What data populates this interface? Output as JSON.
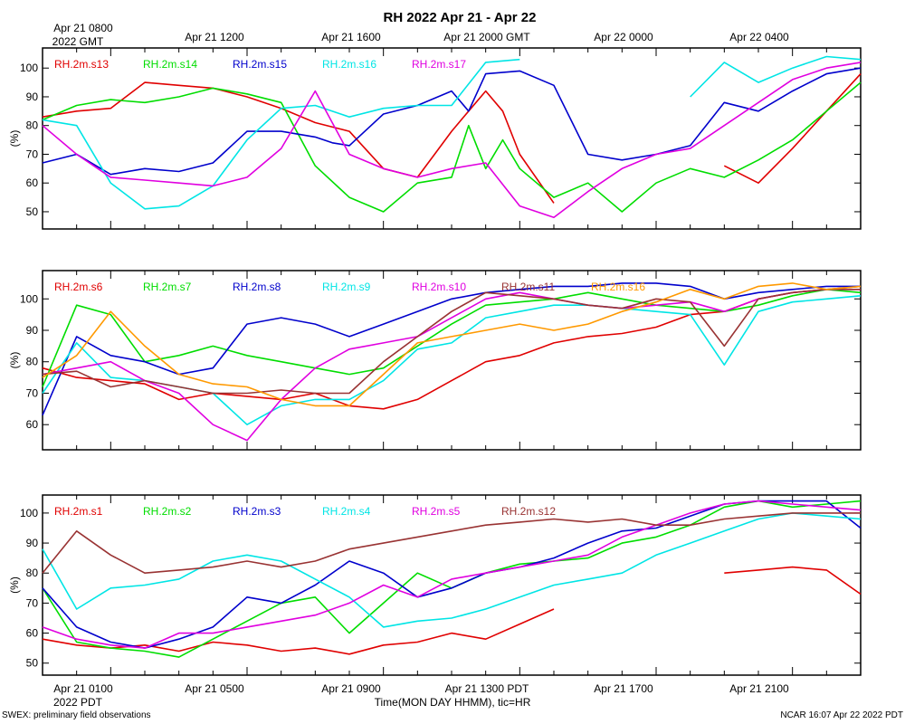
{
  "title": "RH 2022 Apr 21 - Apr 22",
  "top_axis": {
    "labels": [
      "Apr 21 0800",
      "Apr 21 1200",
      "Apr 21 1600",
      "Apr 21 2000 GMT",
      "Apr 22 0000",
      "Apr 22 0400"
    ],
    "year_label": "2022 GMT"
  },
  "bottom_axis": {
    "labels": [
      "Apr 21 0100",
      "Apr 21 0500",
      "Apr 21 0900",
      "Apr 21 1300 PDT",
      "Apr 21 1700",
      "Apr 21 2100"
    ],
    "year_label": "2022 PDT",
    "xlabel": "Time(MON DAY HHMM), tic=HR"
  },
  "footer": {
    "left": "SWEX: preliminary field observations",
    "right": "NCAR 16:07 Apr 22 2022 PDT"
  },
  "colors": {
    "red": "#e00000",
    "green": "#00dd00",
    "blue": "#0000cc",
    "cyan": "#00e5e5",
    "magenta": "#e000e0",
    "brown": "#993333",
    "orange": "#ff9900"
  },
  "chart_data": [
    {
      "type": "line",
      "ylabel": "(%)",
      "ylim": [
        44,
        107
      ],
      "xlim": [
        0,
        24
      ],
      "yticks": [
        50,
        60,
        70,
        80,
        90,
        100
      ],
      "series": [
        {
          "name": "RH.2m.s13",
          "color": "red",
          "x": [
            0,
            1,
            2,
            3,
            4,
            5,
            6,
            7,
            8,
            9,
            10,
            11,
            11.5,
            12,
            12.5,
            13,
            13.5,
            14,
            15,
            16,
            17,
            18,
            18.5,
            19,
            20,
            21,
            22,
            23,
            24
          ],
          "y": [
            83,
            85,
            86,
            95,
            94,
            93,
            90,
            86,
            81,
            78,
            65,
            62,
            70,
            78,
            85,
            92,
            85,
            70,
            53,
            null,
            null,
            null,
            null,
            null,
            66,
            60,
            72,
            85,
            98
          ]
        },
        {
          "name": "RH.2m.s14",
          "color": "green",
          "x": [
            0,
            1,
            2,
            3,
            4,
            5,
            6,
            7,
            8,
            9,
            10,
            11,
            12,
            12.5,
            13,
            13.5,
            14,
            15,
            16,
            17,
            18,
            19,
            20,
            21,
            22,
            23,
            24
          ],
          "y": [
            82,
            87,
            89,
            88,
            90,
            93,
            91,
            88,
            66,
            55,
            50,
            60,
            62,
            80,
            65,
            75,
            65,
            55,
            60,
            50,
            60,
            65,
            62,
            68,
            75,
            85,
            95
          ]
        },
        {
          "name": "RH.2m.s15",
          "color": "blue",
          "x": [
            0,
            1,
            2,
            3,
            4,
            5,
            6,
            7,
            8,
            8.5,
            9,
            10,
            11,
            12,
            12.5,
            13,
            14,
            15,
            16,
            17,
            18,
            19,
            20,
            21,
            22,
            23,
            24
          ],
          "y": [
            67,
            70,
            63,
            65,
            64,
            67,
            78,
            78,
            76,
            74,
            73,
            84,
            87,
            92,
            85,
            98,
            99,
            94,
            70,
            68,
            70,
            73,
            88,
            85,
            92,
            98,
            100
          ]
        },
        {
          "name": "RH.2m.s16",
          "color": "cyan",
          "x": [
            0,
            1,
            2,
            3,
            4,
            5,
            6,
            7,
            8,
            9,
            10,
            11,
            12,
            13,
            14,
            15,
            16,
            17,
            18,
            19,
            20,
            21,
            22,
            23,
            24
          ],
          "y": [
            82,
            80,
            60,
            51,
            52,
            59,
            75,
            86,
            87,
            83,
            86,
            87,
            87,
            102,
            103,
            null,
            null,
            null,
            null,
            90,
            102,
            95,
            100,
            104,
            103
          ]
        },
        {
          "name": "RH.2m.s17",
          "color": "magenta",
          "x": [
            0,
            1,
            2,
            3,
            4,
            5,
            6,
            7,
            8,
            9,
            10,
            11,
            12,
            13,
            14,
            15,
            16,
            17,
            18,
            19,
            20,
            21,
            22,
            23,
            24
          ],
          "y": [
            80,
            70,
            62,
            61,
            60,
            59,
            62,
            72,
            92,
            70,
            65,
            62,
            65,
            67,
            52,
            48,
            57,
            65,
            70,
            72,
            80,
            88,
            96,
            100,
            102
          ]
        }
      ]
    },
    {
      "type": "line",
      "ylabel": "(%)",
      "ylim": [
        52,
        109
      ],
      "xlim": [
        0,
        24
      ],
      "yticks": [
        60,
        70,
        80,
        90,
        100
      ],
      "series": [
        {
          "name": "RH.2m.s6",
          "color": "red",
          "x": [
            0,
            1,
            2,
            3,
            4,
            5,
            6,
            7,
            8,
            9,
            10,
            11,
            12,
            13,
            14,
            15,
            16,
            17,
            18,
            19,
            20,
            21,
            22,
            23,
            24
          ],
          "y": [
            78,
            75,
            74,
            73,
            68,
            70,
            69,
            68,
            70,
            66,
            65,
            68,
            74,
            80,
            82,
            86,
            88,
            89,
            91,
            95,
            96,
            100,
            102,
            103,
            104
          ]
        },
        {
          "name": "RH.2m.s7",
          "color": "green",
          "x": [
            0,
            1,
            2,
            3,
            4,
            5,
            6,
            7,
            8,
            9,
            10,
            11,
            12,
            13,
            14,
            15,
            16,
            17,
            18,
            19,
            20,
            21,
            22,
            23,
            24
          ],
          "y": [
            72,
            98,
            95,
            80,
            82,
            85,
            82,
            80,
            78,
            76,
            78,
            85,
            92,
            98,
            99,
            100,
            102,
            100,
            98,
            97,
            96,
            98,
            101,
            103,
            102
          ]
        },
        {
          "name": "RH.2m.s8",
          "color": "blue",
          "x": [
            0,
            1,
            2,
            3,
            4,
            5,
            6,
            7,
            8,
            9,
            10,
            11,
            12,
            13,
            14,
            15,
            16,
            17,
            18,
            19,
            20,
            21,
            22,
            23,
            24
          ],
          "y": [
            63,
            88,
            82,
            80,
            76,
            78,
            92,
            94,
            92,
            88,
            92,
            96,
            100,
            102,
            103,
            104,
            104,
            105,
            105,
            104,
            100,
            102,
            103,
            104,
            104
          ]
        },
        {
          "name": "RH.2m.s9",
          "color": "cyan",
          "x": [
            0,
            1,
            2,
            3,
            4,
            5,
            6,
            7,
            8,
            9,
            10,
            11,
            12,
            13,
            14,
            15,
            16,
            17,
            18,
            19,
            20,
            21,
            22,
            23,
            24
          ],
          "y": [
            70,
            86,
            75,
            74,
            72,
            70,
            60,
            66,
            68,
            68,
            74,
            84,
            86,
            94,
            96,
            98,
            98,
            97,
            96,
            95,
            79,
            96,
            99,
            100,
            101
          ]
        },
        {
          "name": "RH.2m.s10",
          "color": "magenta",
          "x": [
            0,
            1,
            2,
            3,
            4,
            5,
            6,
            7,
            8,
            9,
            10,
            11,
            12,
            13,
            14,
            15,
            16,
            17,
            18,
            19,
            20,
            21,
            22,
            23,
            24
          ],
          "y": [
            76,
            78,
            80,
            74,
            70,
            60,
            55,
            68,
            78,
            84,
            86,
            88,
            94,
            100,
            102,
            100,
            98,
            97,
            98,
            99,
            96,
            100,
            102,
            103,
            103
          ]
        },
        {
          "name": "RH.2m.s11",
          "color": "brown",
          "x": [
            0,
            1,
            2,
            3,
            4,
            5,
            6,
            7,
            8,
            9,
            10,
            11,
            12,
            13,
            14,
            15,
            16,
            17,
            18,
            19,
            20,
            21,
            22,
            23,
            24
          ],
          "y": [
            76,
            77,
            72,
            74,
            72,
            70,
            70,
            71,
            70,
            70,
            80,
            88,
            96,
            102,
            101,
            100,
            98,
            97,
            100,
            99,
            85,
            100,
            102,
            103,
            103
          ]
        },
        {
          "name": "RH.2m.s16",
          "color": "orange",
          "x": [
            0,
            1,
            2,
            3,
            4,
            5,
            6,
            7,
            8,
            9,
            10,
            11,
            12,
            13,
            14,
            15,
            16,
            17,
            18,
            19,
            20,
            21,
            22,
            23,
            24
          ],
          "y": [
            75,
            82,
            96,
            85,
            76,
            73,
            72,
            68,
            66,
            66,
            76,
            86,
            88,
            90,
            92,
            90,
            92,
            96,
            99,
            103,
            100,
            104,
            105,
            103,
            104
          ]
        }
      ]
    },
    {
      "type": "line",
      "ylabel": "(%)",
      "ylim": [
        46,
        106
      ],
      "xlim": [
        0,
        24
      ],
      "yticks": [
        50,
        60,
        70,
        80,
        90,
        100
      ],
      "series": [
        {
          "name": "RH.2m.s1",
          "color": "red",
          "x": [
            0,
            1,
            2,
            3,
            4,
            5,
            6,
            7,
            8,
            9,
            10,
            11,
            12,
            13,
            14,
            15,
            16,
            17,
            18,
            19,
            20,
            21,
            22,
            23,
            24
          ],
          "y": [
            58,
            56,
            55,
            56,
            54,
            57,
            56,
            54,
            55,
            53,
            56,
            57,
            60,
            58,
            63,
            68,
            null,
            null,
            null,
            null,
            80,
            81,
            82,
            81,
            73
          ]
        },
        {
          "name": "RH.2m.s2",
          "color": "green",
          "x": [
            0,
            1,
            2,
            3,
            4,
            5,
            6,
            7,
            8,
            9,
            10,
            11,
            12,
            13,
            14,
            15,
            16,
            17,
            18,
            19,
            20,
            21,
            22,
            23,
            24
          ],
          "y": [
            75,
            57,
            55,
            54,
            52,
            58,
            64,
            70,
            72,
            60,
            70,
            80,
            75,
            80,
            83,
            84,
            85,
            90,
            92,
            96,
            102,
            104,
            102,
            103,
            104
          ]
        },
        {
          "name": "RH.2m.s3",
          "color": "blue",
          "x": [
            0,
            1,
            2,
            3,
            4,
            5,
            6,
            7,
            8,
            9,
            10,
            11,
            12,
            13,
            14,
            15,
            16,
            17,
            18,
            19,
            20,
            21,
            22,
            23,
            24
          ],
          "y": [
            75,
            62,
            57,
            55,
            58,
            62,
            72,
            70,
            76,
            84,
            80,
            72,
            75,
            80,
            82,
            85,
            90,
            94,
            95,
            99,
            103,
            104,
            104,
            104,
            95
          ]
        },
        {
          "name": "RH.2m.s4",
          "color": "cyan",
          "x": [
            0,
            1,
            2,
            3,
            4,
            5,
            6,
            7,
            8,
            9,
            10,
            11,
            12,
            13,
            14,
            15,
            16,
            17,
            18,
            19,
            20,
            21,
            22,
            23,
            24
          ],
          "y": [
            88,
            68,
            75,
            76,
            78,
            84,
            86,
            84,
            78,
            72,
            62,
            64,
            65,
            68,
            72,
            76,
            78,
            80,
            86,
            90,
            94,
            98,
            100,
            99,
            98
          ]
        },
        {
          "name": "RH.2m.s5",
          "color": "magenta",
          "x": [
            0,
            1,
            2,
            3,
            4,
            5,
            6,
            7,
            8,
            9,
            10,
            11,
            12,
            13,
            14,
            15,
            16,
            17,
            18,
            19,
            20,
            21,
            22,
            23,
            24
          ],
          "y": [
            62,
            58,
            56,
            55,
            60,
            60,
            62,
            64,
            66,
            70,
            76,
            72,
            78,
            80,
            82,
            84,
            86,
            92,
            96,
            100,
            103,
            104,
            103,
            102,
            101
          ]
        },
        {
          "name": "RH.2m.s12",
          "color": "brown",
          "x": [
            0,
            1,
            2,
            3,
            4,
            5,
            6,
            7,
            8,
            9,
            10,
            11,
            12,
            13,
            14,
            15,
            16,
            17,
            18,
            19,
            20,
            21,
            22,
            23,
            24
          ],
          "y": [
            80,
            94,
            86,
            80,
            81,
            82,
            84,
            82,
            84,
            88,
            90,
            92,
            94,
            96,
            97,
            98,
            97,
            98,
            96,
            96,
            98,
            99,
            100,
            100,
            100
          ]
        }
      ]
    }
  ]
}
